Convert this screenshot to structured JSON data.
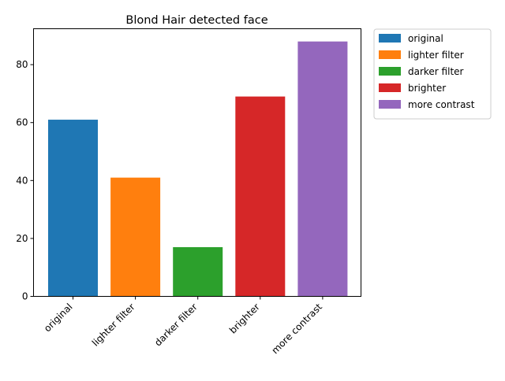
{
  "chart_data": {
    "type": "bar",
    "title": "Blond Hair detected face",
    "xlabel": "",
    "ylabel": "",
    "categories": [
      "original",
      "lighter filter",
      "darker filter",
      "brighter",
      "more contrast"
    ],
    "values": [
      61,
      41,
      17,
      69,
      88
    ],
    "colors": [
      "#1f77b4",
      "#ff7f0e",
      "#2ca02c",
      "#d62728",
      "#9467bd"
    ],
    "ylim": [
      0,
      92.4
    ],
    "yticks": [
      0,
      20,
      40,
      60,
      80
    ],
    "grid": false,
    "legend": {
      "position": "outside-top-right",
      "entries": [
        "original",
        "lighter filter",
        "darker filter",
        "brighter",
        "more contrast"
      ]
    }
  }
}
